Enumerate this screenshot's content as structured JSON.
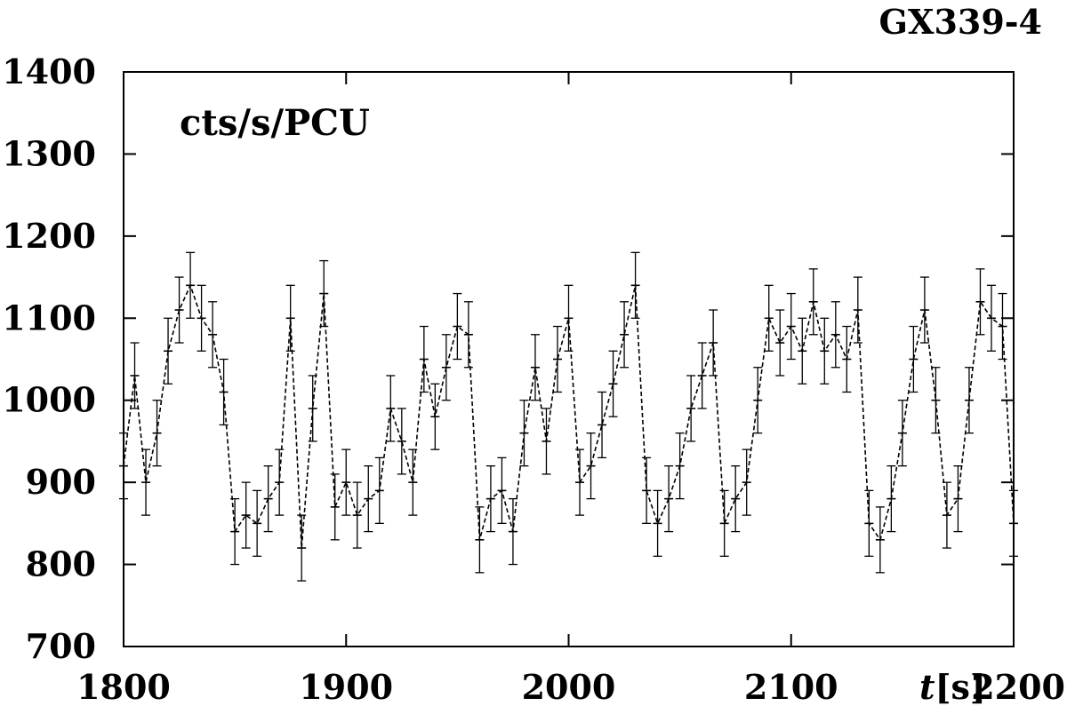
{
  "chart_data": {
    "type": "line",
    "title": "GX339-4",
    "ylabel": "cts/s/PCU",
    "xlabel": "t[s]",
    "xlabel_italic": "t",
    "xlabel_unit": "[s]",
    "xlim": [
      1800,
      2200
    ],
    "ylim": [
      700,
      1400
    ],
    "x_ticks": [
      1800,
      1900,
      2000,
      2100,
      2200
    ],
    "y_ticks": [
      700,
      800,
      900,
      1000,
      1100,
      1200,
      1300,
      1400
    ],
    "grid": false,
    "legend": "none",
    "error_bars": true,
    "error_bar_halfwidth": 40,
    "line_style": "dashed",
    "colors": {
      "series": "#000000",
      "axes": "#000000",
      "background": "#ffffff"
    },
    "x": [
      1800,
      1805,
      1810,
      1815,
      1820,
      1825,
      1830,
      1835,
      1840,
      1845,
      1850,
      1855,
      1860,
      1865,
      1870,
      1875,
      1880,
      1885,
      1890,
      1895,
      1900,
      1905,
      1910,
      1915,
      1920,
      1925,
      1930,
      1935,
      1940,
      1945,
      1950,
      1955,
      1960,
      1965,
      1970,
      1975,
      1980,
      1985,
      1990,
      1995,
      2000,
      2005,
      2010,
      2015,
      2020,
      2025,
      2030,
      2035,
      2040,
      2045,
      2050,
      2055,
      2060,
      2065,
      2070,
      2075,
      2080,
      2085,
      2090,
      2095,
      2100,
      2105,
      2110,
      2115,
      2120,
      2125,
      2130,
      2135,
      2140,
      2145,
      2150,
      2155,
      2160,
      2165,
      2170,
      2175,
      2180,
      2185,
      2190,
      2195,
      2200
    ],
    "values": [
      920,
      1030,
      900,
      960,
      1060,
      1110,
      1140,
      1100,
      1080,
      1010,
      840,
      860,
      850,
      880,
      900,
      1100,
      820,
      990,
      1130,
      870,
      900,
      860,
      880,
      890,
      990,
      950,
      900,
      1050,
      980,
      1040,
      1090,
      1080,
      830,
      880,
      890,
      840,
      960,
      1040,
      950,
      1050,
      1100,
      900,
      920,
      970,
      1020,
      1080,
      1140,
      890,
      850,
      880,
      920,
      990,
      1030,
      1070,
      850,
      880,
      900,
      1000,
      1100,
      1070,
      1090,
      1060,
      1120,
      1060,
      1080,
      1050,
      1110,
      850,
      830,
      880,
      960,
      1050,
      1110,
      1000,
      860,
      880,
      1000,
      1120,
      1100,
      1090,
      850
    ]
  }
}
